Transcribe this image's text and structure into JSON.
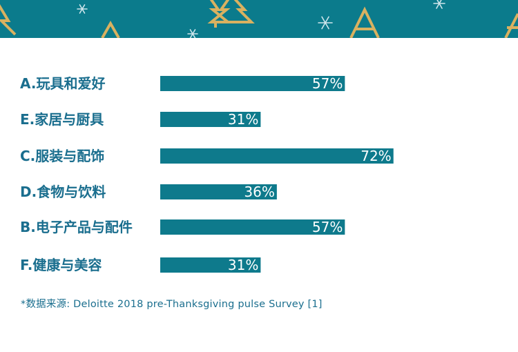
{
  "colors": {
    "banner": "#0b7b8c",
    "bar": "#0e7a8c",
    "label": "#1a6e8e",
    "tree_gold": "#d9b160",
    "snowflake": "#cfe6ec"
  },
  "decorations": {
    "banner_icons": [
      "tree-icon",
      "snowflake-icon"
    ]
  },
  "chart_data": {
    "type": "bar",
    "orientation": "horizontal",
    "categories": [
      "A.玩具和爱好",
      "E.家居与厨具",
      "C.服装与配饰",
      "D.食物与饮料",
      "B.电子产品与配件",
      "F.健康与美容"
    ],
    "values": [
      57,
      31,
      72,
      36,
      57,
      31
    ],
    "value_labels": [
      "57%",
      "31%",
      "72%",
      "36%",
      "57%",
      "31%"
    ],
    "xlim": [
      0,
      100
    ],
    "grid": false
  },
  "source_note": "*数据来源: Deloitte 2018 pre-Thanksgiving pulse Survey [1]"
}
